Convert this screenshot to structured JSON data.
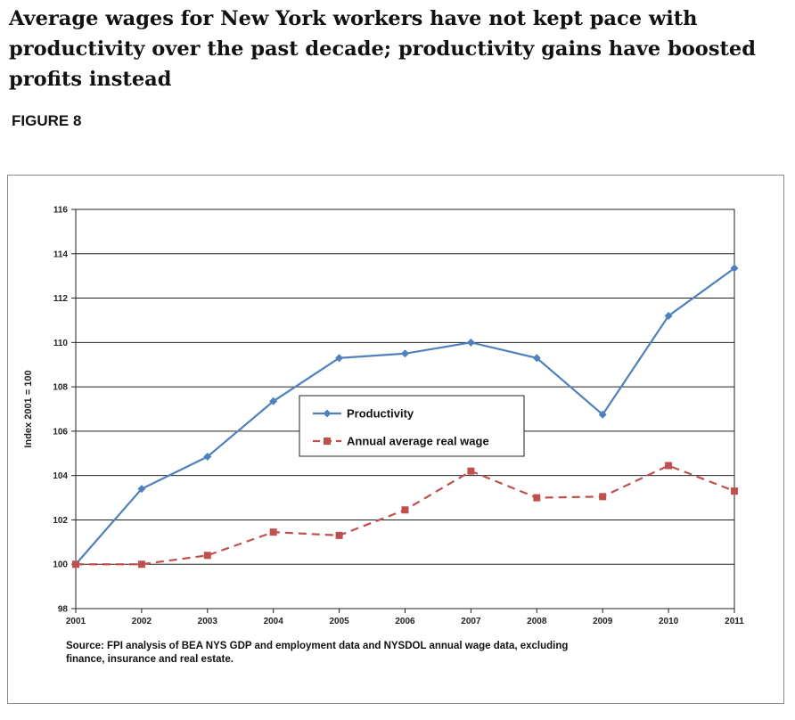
{
  "headline": "Average wages for New York workers have not kept pace with productivity over the past decade; productivity gains have boosted profits instead",
  "figure_label": "FIGURE 8",
  "chart_data": {
    "type": "line",
    "title": "",
    "xlabel": "",
    "ylabel": "Index 2001 = 100",
    "categories": [
      "2001",
      "2002",
      "2003",
      "2004",
      "2005",
      "2006",
      "2007",
      "2008",
      "2009",
      "2010",
      "2011"
    ],
    "ylim": [
      98,
      116
    ],
    "yticks": [
      98,
      100,
      102,
      104,
      106,
      108,
      110,
      112,
      114,
      116
    ],
    "grid": true,
    "legend_position": "center",
    "series": [
      {
        "name": "Productivity",
        "color": "#4f81bd",
        "marker": "diamond",
        "dash": "solid",
        "values": [
          100,
          103.4,
          104.85,
          107.35,
          109.3,
          109.5,
          110.0,
          109.3,
          106.75,
          111.2,
          113.35
        ]
      },
      {
        "name": "Annual average real wage",
        "color": "#c0504d",
        "marker": "square",
        "dash": "dashed",
        "values": [
          100,
          100,
          100.4,
          101.45,
          101.3,
          102.45,
          104.2,
          103.0,
          103.05,
          104.45,
          103.3
        ]
      }
    ],
    "source_lines": [
      "Source: FPI analysis of BEA NYS GDP and employment data and NYSDOL annual wage data, excluding",
      "finance, insurance and real estate."
    ]
  }
}
